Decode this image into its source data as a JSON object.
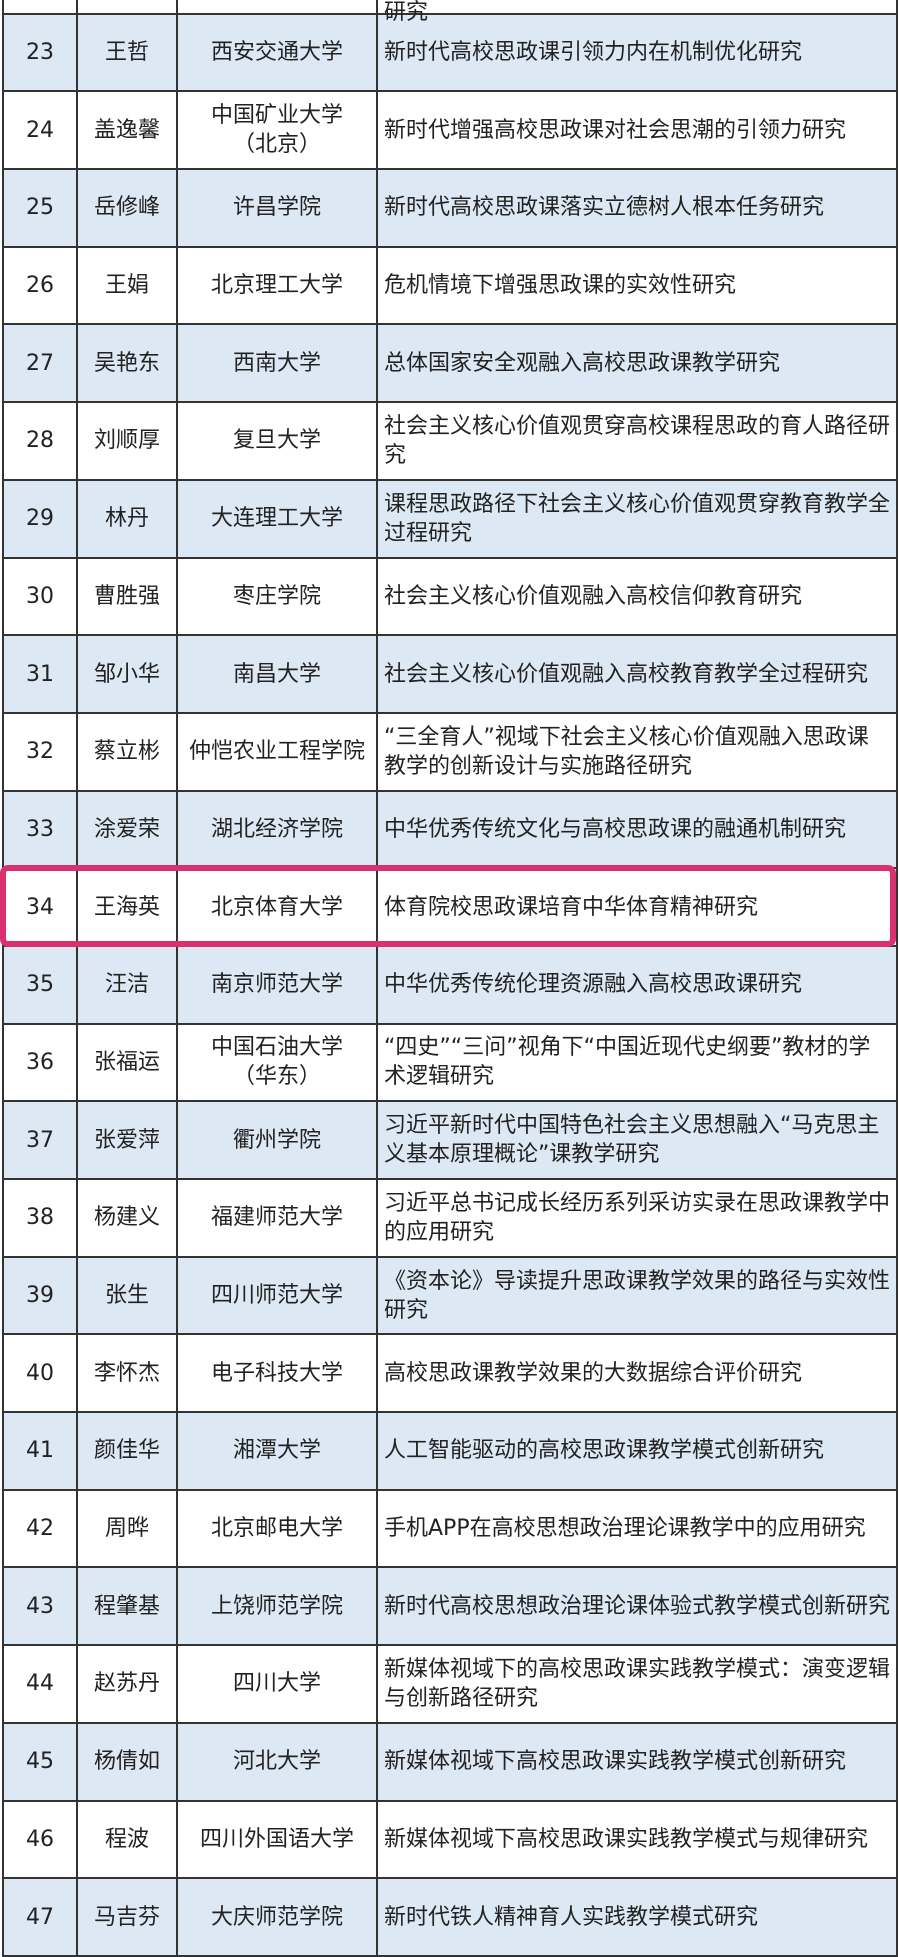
{
  "table": {
    "top_partial_text": "研究",
    "highlight_color": "#d9306f",
    "highlighted_row": "34",
    "rows": [
      {
        "no": "23",
        "name": "王哲",
        "school": "西安交通大学",
        "topic": "新时代高校思政课引领力内在机制优化研究"
      },
      {
        "no": "24",
        "name": "盖逸馨",
        "school": "中国矿业大学（北京）",
        "topic": "新时代增强高校思政课对社会思潮的引领力研究"
      },
      {
        "no": "25",
        "name": "岳修峰",
        "school": "许昌学院",
        "topic": "新时代高校思政课落实立德树人根本任务研究"
      },
      {
        "no": "26",
        "name": "王娟",
        "school": "北京理工大学",
        "topic": "危机情境下增强思政课的实效性研究"
      },
      {
        "no": "27",
        "name": "吴艳东",
        "school": "西南大学",
        "topic": "总体国家安全观融入高校思政课教学研究"
      },
      {
        "no": "28",
        "name": "刘顺厚",
        "school": "复旦大学",
        "topic": "社会主义核心价值观贯穿高校课程思政的育人路径研究"
      },
      {
        "no": "29",
        "name": "林丹",
        "school": "大连理工大学",
        "topic": "课程思政路径下社会主义核心价值观贯穿教育教学全过程研究"
      },
      {
        "no": "30",
        "name": "曹胜强",
        "school": "枣庄学院",
        "topic": "社会主义核心价值观融入高校信仰教育研究"
      },
      {
        "no": "31",
        "name": "邹小华",
        "school": "南昌大学",
        "topic": "社会主义核心价值观融入高校教育教学全过程研究"
      },
      {
        "no": "32",
        "name": "蔡立彬",
        "school": "仲恺农业工程学院",
        "topic": "“三全育人”视域下社会主义核心价值观融入思政课教学的创新设计与实施路径研究"
      },
      {
        "no": "33",
        "name": "涂爱荣",
        "school": "湖北经济学院",
        "topic": "中华优秀传统文化与高校思政课的融通机制研究"
      },
      {
        "no": "34",
        "name": "王海英",
        "school": "北京体育大学",
        "topic": "体育院校思政课培育中华体育精神研究"
      },
      {
        "no": "35",
        "name": "汪洁",
        "school": "南京师范大学",
        "topic": "中华优秀传统伦理资源融入高校思政课研究"
      },
      {
        "no": "36",
        "name": "张福运",
        "school": "中国石油大学（华东）",
        "topic": "“四史”“三问”视角下“中国近现代史纲要”教材的学术逻辑研究"
      },
      {
        "no": "37",
        "name": "张爱萍",
        "school": "衢州学院",
        "topic": "习近平新时代中国特色社会主义思想融入“马克思主义基本原理概论”课教学研究"
      },
      {
        "no": "38",
        "name": "杨建义",
        "school": "福建师范大学",
        "topic": "习近平总书记成长经历系列采访实录在思政课教学中的应用研究"
      },
      {
        "no": "39",
        "name": "张生",
        "school": "四川师范大学",
        "topic": "《资本论》导读提升思政课教学效果的路径与实效性研究"
      },
      {
        "no": "40",
        "name": "李怀杰",
        "school": "电子科技大学",
        "topic": "高校思政课教学效果的大数据综合评价研究"
      },
      {
        "no": "41",
        "name": "颜佳华",
        "school": "湘潭大学",
        "topic": "人工智能驱动的高校思政课教学模式创新研究"
      },
      {
        "no": "42",
        "name": "周晔",
        "school": "北京邮电大学",
        "topic": "手机APP在高校思想政治理论课教学中的应用研究"
      },
      {
        "no": "43",
        "name": "程肇基",
        "school": "上饶师范学院",
        "topic": "新时代高校思想政治理论课体验式教学模式创新研究"
      },
      {
        "no": "44",
        "name": "赵苏丹",
        "school": "四川大学",
        "topic": "新媒体视域下的高校思政课实践教学模式：演变逻辑与创新路径研究"
      },
      {
        "no": "45",
        "name": "杨倩如",
        "school": "河北大学",
        "topic": "新媒体视域下高校思政课实践教学模式创新研究"
      },
      {
        "no": "46",
        "name": "程波",
        "school": "四川外国语大学",
        "topic": "新媒体视域下高校思政课实践教学模式与规律研究"
      },
      {
        "no": "47",
        "name": "马吉芬",
        "school": "大庆师范学院",
        "topic": "新时代铁人精神育人实践教学模式研究"
      }
    ]
  }
}
